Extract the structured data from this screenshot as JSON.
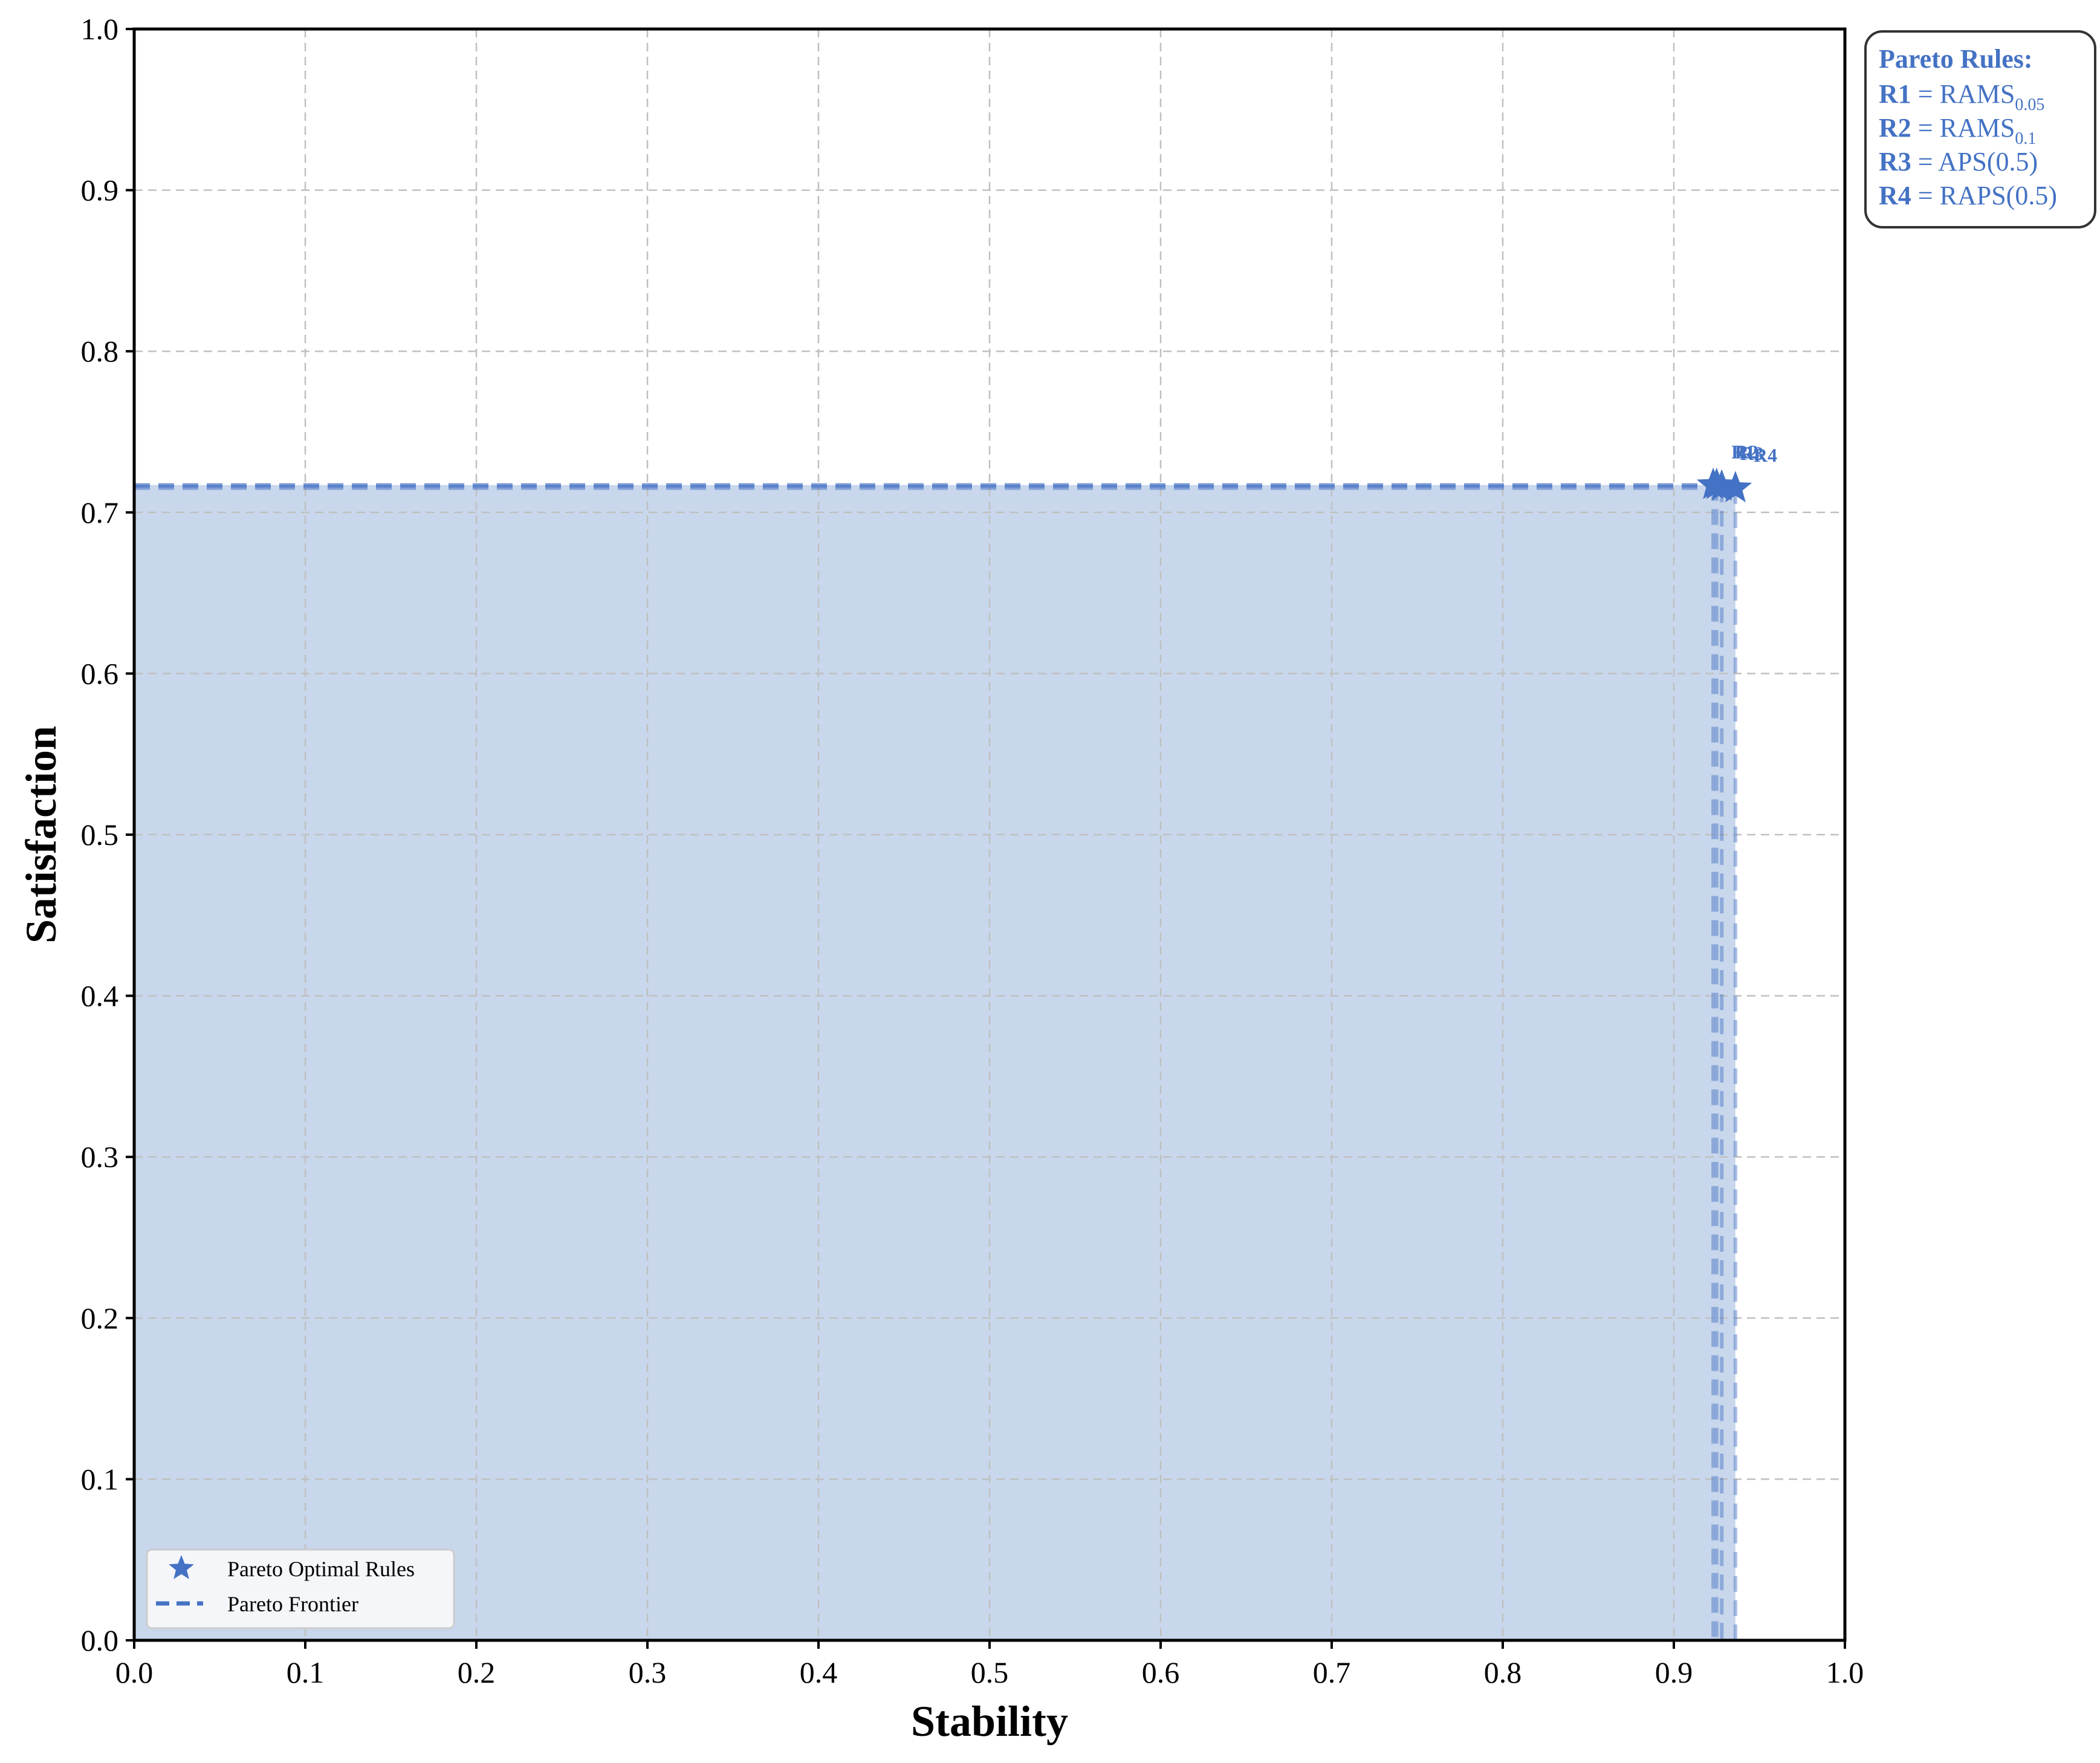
{
  "chart_data": {
    "type": "scatter",
    "title": "",
    "xlabel": "Stability",
    "ylabel": "Satisfaction",
    "xlim": [
      0.0,
      1.0
    ],
    "ylim": [
      0.0,
      1.0
    ],
    "xticks": [
      "0.0",
      "0.1",
      "0.2",
      "0.3",
      "0.4",
      "0.5",
      "0.6",
      "0.7",
      "0.8",
      "0.9",
      "1.0"
    ],
    "yticks": [
      "0.0",
      "0.1",
      "0.2",
      "0.3",
      "0.4",
      "0.5",
      "0.6",
      "0.7",
      "0.8",
      "0.9",
      "1.0"
    ],
    "grid": true,
    "legend_position": "lower-left",
    "legend": [
      {
        "label": "Pareto Optimal Rules",
        "marker": "star"
      },
      {
        "label": "Pareto Frontier",
        "marker": "dashed-line"
      }
    ],
    "points": [
      {
        "label": "R1",
        "x": 0.923,
        "y": 0.717
      },
      {
        "label": "R2",
        "x": 0.925,
        "y": 0.717
      },
      {
        "label": "R3",
        "x": 0.928,
        "y": 0.716
      },
      {
        "label": "R4",
        "x": 0.936,
        "y": 0.715
      }
    ],
    "colors": {
      "series": "#4472c4",
      "fill": "#c8d7ec",
      "grid": "#c0c0c0"
    },
    "rules_box": {
      "title": "Pareto Rules:",
      "items": [
        {
          "key": "R1",
          "eq": " = ",
          "name": "RAMS",
          "sub": "0.05",
          "suffix": ""
        },
        {
          "key": "R2",
          "eq": " = ",
          "name": "RAMS",
          "sub": "0.1",
          "suffix": ""
        },
        {
          "key": "R3",
          "eq": " = ",
          "name": "APS(0.5)",
          "sub": "",
          "suffix": ""
        },
        {
          "key": "R4",
          "eq": " = ",
          "name": "RAPS(0.5)",
          "sub": "",
          "suffix": ""
        }
      ]
    }
  }
}
